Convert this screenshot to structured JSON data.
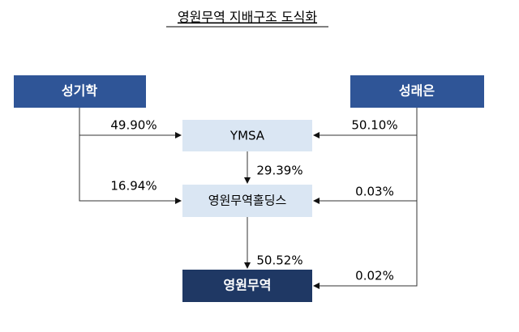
{
  "title": "영원무역 지배구조 도식화",
  "nodes": [
    {
      "label": "성기학"
    },
    {
      "label": "성래은"
    },
    {
      "label": "YMSA"
    },
    {
      "label": "영원무역홀딩스"
    },
    {
      "label": "영원무역"
    }
  ],
  "edges": [
    {
      "label": "49.90%"
    },
    {
      "label": "16.94%"
    },
    {
      "label": "50.10%"
    },
    {
      "label": "0.03%"
    },
    {
      "label": "0.02%"
    },
    {
      "label": "29.39%"
    },
    {
      "label": "50.52%"
    }
  ]
}
